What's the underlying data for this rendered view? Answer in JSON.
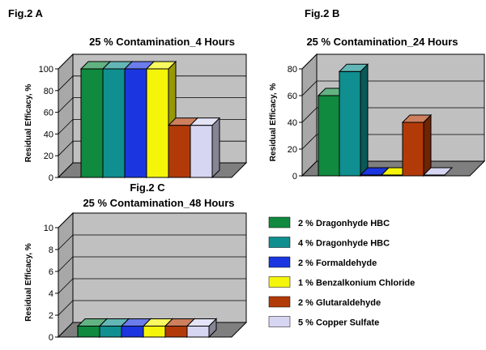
{
  "series_colors": [
    "#0f8a3e",
    "#0f8f8f",
    "#1b36e0",
    "#f5f50a",
    "#b23a08",
    "#d6d6f2"
  ],
  "legend": {
    "items": [
      "2 % Dragonhyde HBC",
      "4 % Dragonhyde HBC",
      "2 %  Formaldehyde",
      "1 % Benzalkonium Chloride",
      "2 % Glutaraldehyde",
      "5 % Copper Sulfate"
    ]
  },
  "chart_data": [
    {
      "type": "bar",
      "fig_label": "Fig.2 A",
      "title": "25 % Contamination_4 Hours",
      "ylabel": "Residual Efficacy, %",
      "ylim": [
        0,
        100
      ],
      "yticks": [
        0,
        20,
        40,
        60,
        80,
        100
      ],
      "grid": true,
      "series": [
        {
          "name": "2 % Dragonhyde HBC",
          "values": [
            100
          ]
        },
        {
          "name": "4 % Dragonhyde HBC",
          "values": [
            100
          ]
        },
        {
          "name": "2 %  Formaldehyde",
          "values": [
            100
          ]
        },
        {
          "name": "1 % Benzalkonium Chloride",
          "values": [
            100
          ]
        },
        {
          "name": "2 % Glutaraldehyde",
          "values": [
            48
          ]
        },
        {
          "name": "5 % Copper Sulfate",
          "values": [
            48
          ]
        }
      ]
    },
    {
      "type": "bar",
      "fig_label": "Fig.2  B",
      "title": "25 % Contamination_24 Hours",
      "ylabel": "Residual Efficacy, %",
      "ylim": [
        0,
        80
      ],
      "yticks": [
        0,
        20,
        40,
        60,
        80
      ],
      "grid": true,
      "series": [
        {
          "name": "2 % Dragonhyde HBC",
          "values": [
            60
          ]
        },
        {
          "name": "4 % Dragonhyde HBC",
          "values": [
            78
          ]
        },
        {
          "name": "2 %  Formaldehyde",
          "values": [
            0
          ]
        },
        {
          "name": "1 % Benzalkonium Chloride",
          "values": [
            0
          ]
        },
        {
          "name": "2 % Glutaraldehyde",
          "values": [
            40
          ]
        },
        {
          "name": "5 % Copper Sulfate",
          "values": [
            0
          ]
        }
      ]
    },
    {
      "type": "bar",
      "fig_label": "Fig.2 C",
      "title": "25 % Contamination_48 Hours",
      "ylabel": "Residual Efficacy, %",
      "ylim": [
        0,
        10
      ],
      "yticks": [
        0,
        2,
        4,
        6,
        8,
        10
      ],
      "grid": true,
      "series": [
        {
          "name": "2 % Dragonhyde HBC",
          "values": [
            1
          ]
        },
        {
          "name": "4 % Dragonhyde HBC",
          "values": [
            1
          ]
        },
        {
          "name": "2 %  Formaldehyde",
          "values": [
            1
          ]
        },
        {
          "name": "1 % Benzalkonium Chloride",
          "values": [
            1
          ]
        },
        {
          "name": "2 % Glutaraldehyde",
          "values": [
            1
          ]
        },
        {
          "name": "5 % Copper Sulfate",
          "values": [
            1
          ]
        }
      ]
    }
  ]
}
